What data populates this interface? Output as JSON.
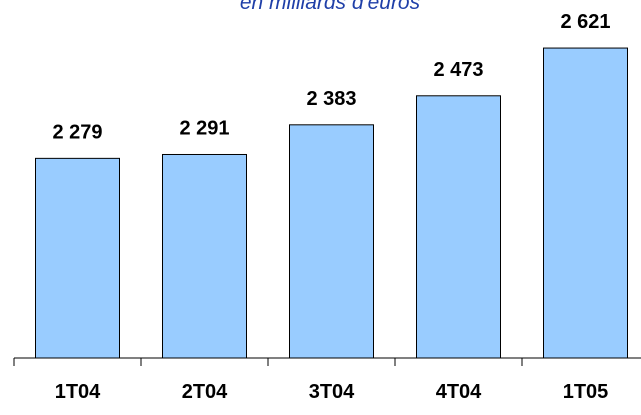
{
  "chart_data": {
    "type": "bar",
    "subtitle": "en milliards d'euros",
    "categories": [
      "1T04",
      "2T04",
      "3T04",
      "4T04",
      "1T05"
    ],
    "values": [
      2279,
      2291,
      2383,
      2473,
      2621
    ],
    "value_labels": [
      "2 279",
      "2 291",
      "2 383",
      "2 473",
      "2 621"
    ],
    "color": "#99ccff",
    "ylim": [
      1660,
      2770
    ]
  }
}
